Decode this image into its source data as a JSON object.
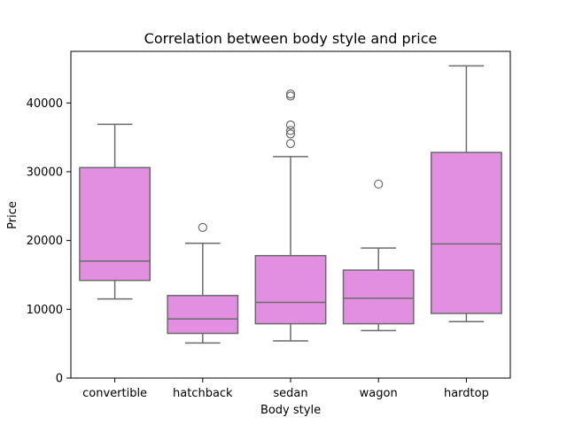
{
  "chart_data": {
    "type": "box",
    "title": "Correlation between body style and price",
    "xlabel": "Body style",
    "ylabel": "Price",
    "ylim": [
      0,
      47500
    ],
    "yticks": [
      0,
      10000,
      20000,
      30000,
      40000
    ],
    "ytick_labels": [
      "0",
      "10000",
      "20000",
      "30000",
      "40000"
    ],
    "grid": false,
    "box_color": "#e28fe2",
    "line_color": "#6b6b6b",
    "categories": [
      "convertible",
      "hatchback",
      "sedan",
      "wagon",
      "hardtop"
    ],
    "boxes": [
      {
        "category": "convertible",
        "whisker_low": 11500,
        "q1": 14200,
        "median": 17000,
        "q3": 30600,
        "whisker_high": 36900,
        "outliers": []
      },
      {
        "category": "hatchback",
        "whisker_low": 5100,
        "q1": 6500,
        "median": 8600,
        "q3": 12000,
        "whisker_high": 19600,
        "outliers": [
          21900
        ]
      },
      {
        "category": "sedan",
        "whisker_low": 5400,
        "q1": 7900,
        "median": 11000,
        "q3": 17800,
        "whisker_high": 32200,
        "outliers": [
          34100,
          35500,
          36000,
          36800,
          41000,
          41300
        ]
      },
      {
        "category": "wagon",
        "whisker_low": 6900,
        "q1": 7900,
        "median": 11600,
        "q3": 15700,
        "whisker_high": 18900,
        "outliers": [
          28200
        ]
      },
      {
        "category": "hardtop",
        "whisker_low": 8200,
        "q1": 9400,
        "median": 19500,
        "q3": 32800,
        "whisker_high": 45400,
        "outliers": []
      }
    ]
  }
}
